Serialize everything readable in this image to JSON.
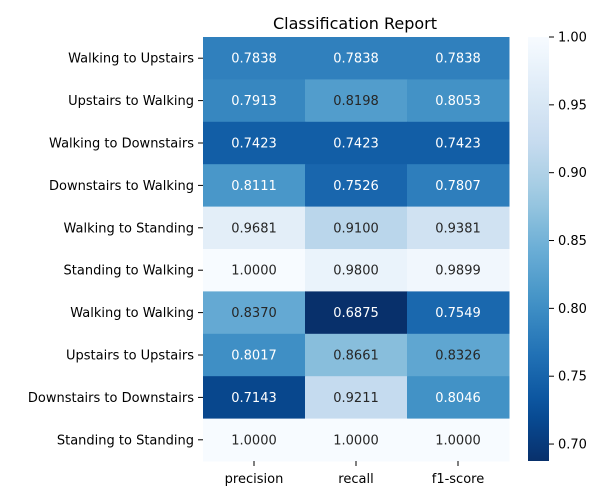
{
  "chart_data": {
    "type": "heatmap",
    "title": "Classification Report",
    "columns": [
      "precision",
      "recall",
      "f1-score"
    ],
    "rows": [
      "Walking to Upstairs",
      "Upstairs to Walking",
      "Walking to Downstairs",
      "Downstairs to Walking",
      "Walking to Standing",
      "Standing to Walking",
      "Walking to Walking",
      "Upstairs to Upstairs",
      "Downstairs to Downstairs",
      "Standing to Standing"
    ],
    "values": [
      [
        0.7838,
        0.7838,
        0.7838
      ],
      [
        0.7913,
        0.8198,
        0.8053
      ],
      [
        0.7423,
        0.7423,
        0.7423
      ],
      [
        0.8111,
        0.7526,
        0.7807
      ],
      [
        0.9681,
        0.91,
        0.9381
      ],
      [
        1.0,
        0.98,
        0.9899
      ],
      [
        0.837,
        0.6875,
        0.7549
      ],
      [
        0.8017,
        0.8661,
        0.8326
      ],
      [
        0.7143,
        0.9211,
        0.8046
      ],
      [
        1.0,
        1.0,
        1.0
      ]
    ],
    "value_labels": [
      [
        "0.7838",
        "0.7838",
        "0.7838"
      ],
      [
        "0.7913",
        "0.8198",
        "0.8053"
      ],
      [
        "0.7423",
        "0.7423",
        "0.7423"
      ],
      [
        "0.8111",
        "0.7526",
        "0.7807"
      ],
      [
        "0.9681",
        "0.9100",
        "0.9381"
      ],
      [
        "1.0000",
        "0.9800",
        "0.9899"
      ],
      [
        "0.8370",
        "0.6875",
        "0.7549"
      ],
      [
        "0.8017",
        "0.8661",
        "0.8326"
      ],
      [
        "0.7143",
        "0.9211",
        "0.8046"
      ],
      [
        "1.0000",
        "1.0000",
        "1.0000"
      ]
    ],
    "colormap": "Blues_r",
    "vmin": 0.6875,
    "vmax": 1.0,
    "colorbar_ticks": [
      "0.70",
      "0.75",
      "0.80",
      "0.85",
      "0.90",
      "0.95",
      "1.00"
    ],
    "colorbar_tick_values": [
      0.7,
      0.75,
      0.8,
      0.85,
      0.9,
      0.95,
      1.0
    ],
    "colorbar_position": "right"
  }
}
